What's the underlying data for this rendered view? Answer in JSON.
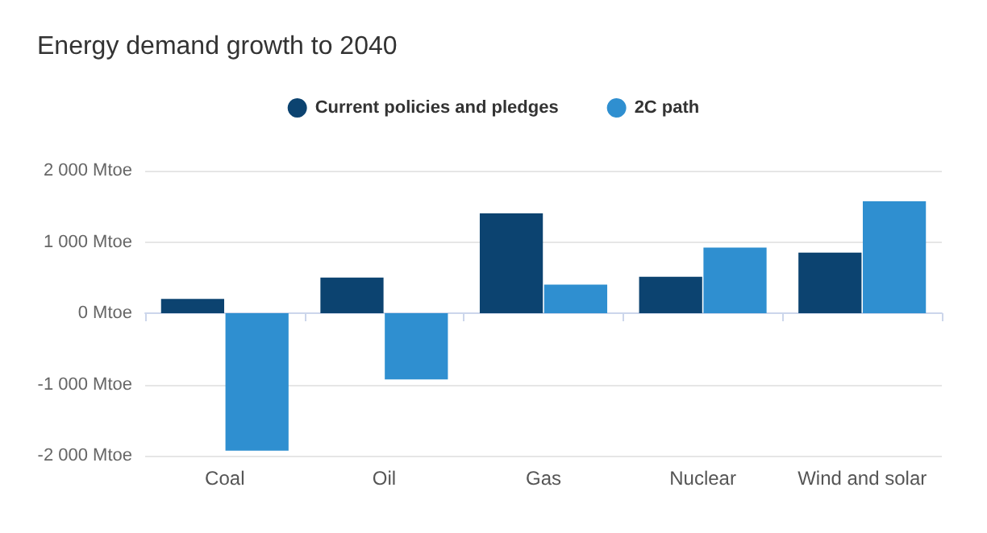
{
  "chart_data": {
    "type": "bar",
    "title": "Energy demand growth to 2040",
    "categories": [
      "Coal",
      "Oil",
      "Gas",
      "Nuclear",
      "Wind and solar"
    ],
    "series": [
      {
        "name": "Current policies and pledges",
        "color": "#0c4370",
        "values": [
          200,
          500,
          1400,
          510,
          850
        ]
      },
      {
        "name": "2C path",
        "color": "#2f8fd0",
        "values": [
          -1930,
          -930,
          400,
          920,
          1570
        ]
      }
    ],
    "ylim": [
      -2000,
      2000
    ],
    "yticks": [
      {
        "value": -2000,
        "label": "-2 000 Mtoe"
      },
      {
        "value": -1000,
        "label": "-1 000 Mtoe"
      },
      {
        "value": 0,
        "label": "0 Mtoe"
      },
      {
        "value": 1000,
        "label": "1 000 Mtoe"
      },
      {
        "value": 2000,
        "label": "2 000 Mtoe"
      }
    ],
    "grid": "y",
    "legend": "top"
  }
}
